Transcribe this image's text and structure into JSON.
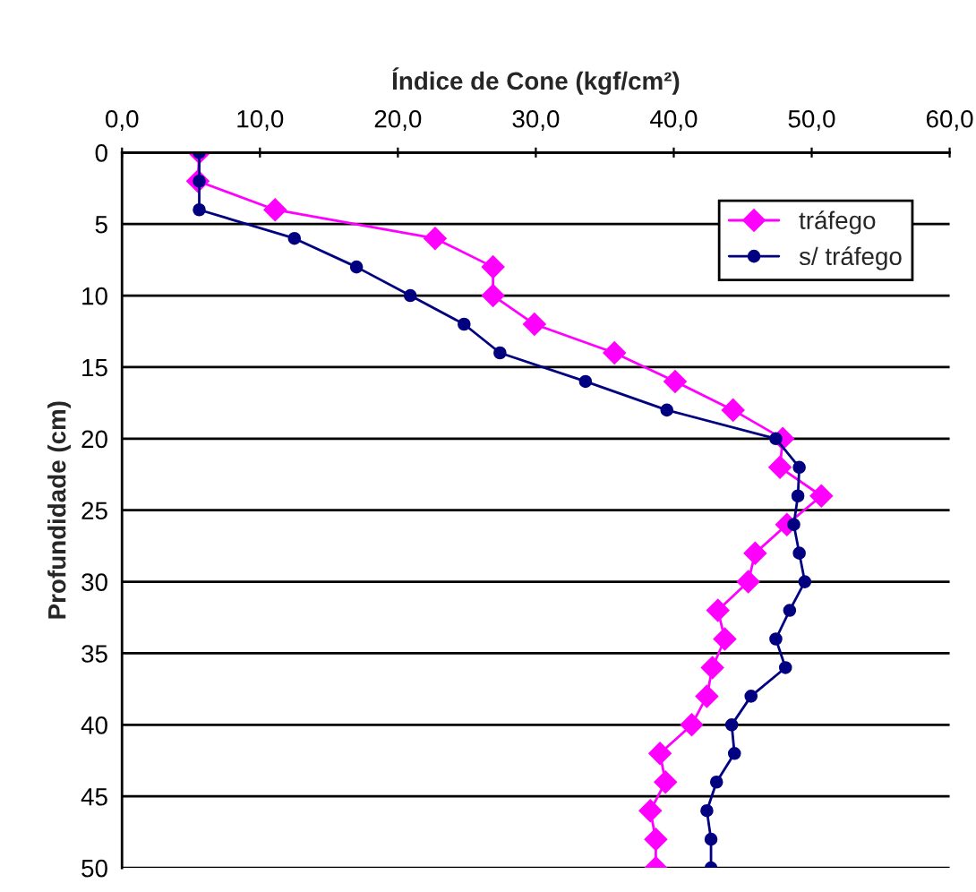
{
  "chart_data": {
    "type": "line",
    "orientation": "horizontal",
    "xlabel": "Índice de Cone (kgf/cm²)",
    "ylabel": "Profundidade (cm)",
    "x": [
      0,
      2,
      4,
      6,
      8,
      10,
      12,
      14,
      16,
      18,
      20,
      22,
      24,
      26,
      28,
      30,
      32,
      34,
      36,
      38,
      40,
      42,
      44,
      46,
      48,
      50
    ],
    "series": [
      {
        "name": "tráfego",
        "color": "#ff00ff",
        "marker": "diamond",
        "values": [
          5.6,
          5.5,
          11.1,
          22.7,
          26.9,
          26.9,
          29.9,
          35.7,
          40.1,
          44.3,
          47.9,
          47.7,
          50.7,
          48.2,
          45.9,
          45.4,
          43.2,
          43.7,
          42.8,
          42.4,
          41.3,
          39.0,
          39.4,
          38.3,
          38.7,
          38.7
        ]
      },
      {
        "name": "s/ tráfego",
        "color": "#000080",
        "marker": "circle",
        "values": [
          5.6,
          5.6,
          5.6,
          12.5,
          17.0,
          20.9,
          24.8,
          27.4,
          33.6,
          39.5,
          47.4,
          49.1,
          49.0,
          48.7,
          49.1,
          49.5,
          48.4,
          47.4,
          48.1,
          45.6,
          44.2,
          44.4,
          43.1,
          42.4,
          42.7,
          42.7
        ]
      }
    ],
    "xlim": [
      0,
      60
    ],
    "xticks": [
      {
        "value": 0,
        "label": "0,0"
      },
      {
        "value": 10,
        "label": "10,0"
      },
      {
        "value": 20,
        "label": "20,0"
      },
      {
        "value": 30,
        "label": "30,0"
      },
      {
        "value": 40,
        "label": "40,0"
      },
      {
        "value": 50,
        "label": "50,0"
      },
      {
        "value": 60,
        "label": "60,0"
      }
    ],
    "ylim": [
      50,
      0
    ],
    "yticks": [
      0,
      5,
      10,
      15,
      20,
      25,
      30,
      35,
      40,
      45,
      50
    ],
    "grid": "y",
    "legend": "top right",
    "line_style": "solid"
  }
}
